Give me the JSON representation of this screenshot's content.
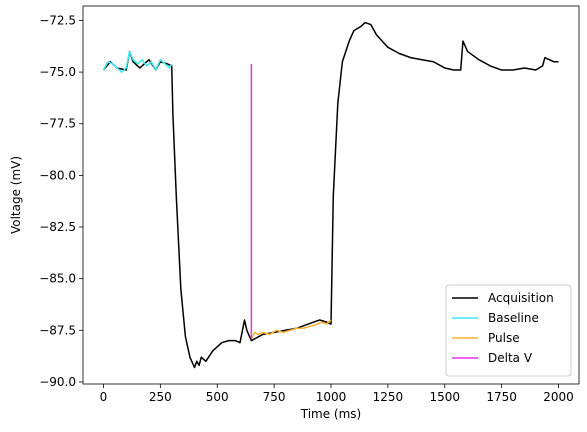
{
  "chart_data": {
    "type": "line",
    "title": "",
    "xlabel": "Time (ms)",
    "ylabel": "Voltage (mV)",
    "xlim": [
      -90,
      2090
    ],
    "ylim": [
      -90.1,
      -71.8
    ],
    "xticks": [
      0,
      250,
      500,
      750,
      1000,
      1250,
      1500,
      1750,
      2000
    ],
    "xtick_labels": [
      "0",
      "250",
      "500",
      "750",
      "1000",
      "1250",
      "1500",
      "1750",
      "2000"
    ],
    "yticks": [
      -90.0,
      -87.5,
      -85.0,
      -82.5,
      -80.0,
      -77.5,
      -75.0,
      -72.5
    ],
    "ytick_labels": [
      "−90.0",
      "−87.5",
      "−85.0",
      "−82.5",
      "−80.0",
      "−77.5",
      "−75.0",
      "−72.5"
    ],
    "grid": false,
    "legend_position": "lower-right",
    "series": [
      {
        "name": "Acquisition",
        "color": "#000000",
        "x": [
          0,
          30,
          60,
          100,
          115,
          130,
          160,
          200,
          230,
          250,
          280,
          300,
          305,
          320,
          340,
          360,
          380,
          400,
          410,
          420,
          430,
          450,
          480,
          500,
          520,
          550,
          580,
          600,
          620,
          630,
          650,
          700,
          750,
          800,
          850,
          900,
          950,
          980,
          1000,
          1010,
          1030,
          1050,
          1080,
          1100,
          1130,
          1150,
          1175,
          1200,
          1250,
          1300,
          1350,
          1400,
          1450,
          1500,
          1540,
          1570,
          1580,
          1600,
          1650,
          1700,
          1750,
          1800,
          1850,
          1900,
          1930,
          1940,
          1960,
          1980,
          2000
        ],
        "y": [
          -74.9,
          -74.5,
          -74.8,
          -74.9,
          -74.0,
          -74.5,
          -74.8,
          -74.4,
          -74.9,
          -74.5,
          -74.6,
          -74.7,
          -77.0,
          -81.0,
          -85.5,
          -87.8,
          -88.8,
          -89.3,
          -89.0,
          -89.2,
          -88.8,
          -89.0,
          -88.5,
          -88.3,
          -88.1,
          -88.0,
          -88.0,
          -88.1,
          -87.0,
          -87.5,
          -88.0,
          -87.7,
          -87.6,
          -87.5,
          -87.4,
          -87.2,
          -87.0,
          -87.1,
          -87.2,
          -81.0,
          -76.5,
          -74.5,
          -73.5,
          -73.0,
          -72.8,
          -72.6,
          -72.7,
          -73.2,
          -73.8,
          -74.1,
          -74.3,
          -74.4,
          -74.5,
          -74.8,
          -74.9,
          -74.9,
          -73.5,
          -74.0,
          -74.4,
          -74.7,
          -74.9,
          -74.9,
          -74.8,
          -74.9,
          -74.7,
          -74.3,
          -74.4,
          -74.5,
          -74.5
        ]
      },
      {
        "name": "Baseline",
        "color": "#3ee8ee",
        "x": [
          0,
          20,
          40,
          60,
          80,
          100,
          115,
          130,
          150,
          170,
          190,
          210,
          230,
          250,
          270,
          290,
          300
        ],
        "y": [
          -74.9,
          -74.5,
          -74.6,
          -74.8,
          -75.0,
          -74.8,
          -74.0,
          -74.4,
          -74.6,
          -74.4,
          -74.7,
          -74.5,
          -74.9,
          -74.4,
          -74.6,
          -74.8,
          -74.6
        ]
      },
      {
        "name": "Pulse",
        "color": "#f6b132",
        "x": [
          650,
          665,
          680,
          700,
          730,
          760,
          790,
          820,
          850,
          880,
          910,
          940,
          960,
          980,
          1000
        ],
        "y": [
          -87.9,
          -87.6,
          -87.7,
          -87.6,
          -87.7,
          -87.5,
          -87.6,
          -87.5,
          -87.4,
          -87.4,
          -87.3,
          -87.2,
          -87.1,
          -87.2,
          -87.0
        ]
      },
      {
        "name": "Delta V",
        "color": "#e833ee",
        "x": [
          650,
          650
        ],
        "y": [
          -74.6,
          -87.9
        ]
      }
    ]
  }
}
